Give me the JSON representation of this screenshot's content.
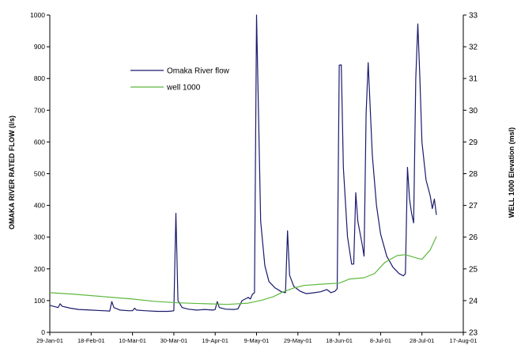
{
  "chart_data": {
    "type": "line",
    "xlabel": "",
    "ylabel": "OMAKA RIVER RATED FLOW (l/s)",
    "y2label": "WELL 1000 Elevation (msl)",
    "ylim": [
      0,
      1000
    ],
    "y2lim": [
      23,
      33
    ],
    "xlim": [
      "2001-01-29",
      "2001-08-17"
    ],
    "grid": false,
    "legend_position": "upper-left inside plot",
    "x_ticks": [
      "29-Jan-01",
      "18-Feb-01",
      "10-Mar-01",
      "30-Mar-01",
      "19-Apr-01",
      "9-May-01",
      "29-May-01",
      "18-Jun-01",
      "8-Jul-01",
      "28-Jul-01",
      "17-Aug-01"
    ],
    "y_ticks": [
      0,
      100,
      200,
      300,
      400,
      500,
      600,
      700,
      800,
      900,
      1000
    ],
    "y2_ticks": [
      23,
      24,
      25,
      26,
      27,
      28,
      29,
      30,
      31,
      32,
      33
    ],
    "series": [
      {
        "name": "Omaka River flow",
        "axis": "left",
        "color": "#1a1a6e",
        "points": [
          [
            "2001-01-29",
            85
          ],
          [
            "2001-02-01",
            80
          ],
          [
            "2001-02-02",
            78
          ],
          [
            "2001-02-03",
            90
          ],
          [
            "2001-02-04",
            82
          ],
          [
            "2001-02-08",
            76
          ],
          [
            "2001-02-12",
            72
          ],
          [
            "2001-02-18",
            70
          ],
          [
            "2001-02-24",
            68
          ],
          [
            "2001-02-27",
            67
          ],
          [
            "2001-02-28",
            97
          ],
          [
            "2001-03-01",
            78
          ],
          [
            "2001-03-04",
            70
          ],
          [
            "2001-03-08",
            68
          ],
          [
            "2001-03-10",
            68
          ],
          [
            "2001-03-11",
            76
          ],
          [
            "2001-03-12",
            70
          ],
          [
            "2001-03-16",
            68
          ],
          [
            "2001-03-22",
            66
          ],
          [
            "2001-03-27",
            66
          ],
          [
            "2001-03-29",
            67
          ],
          [
            "2001-03-30",
            68
          ],
          [
            "2001-03-31",
            375
          ],
          [
            "2001-04-01",
            100
          ],
          [
            "2001-04-03",
            78
          ],
          [
            "2001-04-06",
            73
          ],
          [
            "2001-04-10",
            70
          ],
          [
            "2001-04-14",
            72
          ],
          [
            "2001-04-18",
            70
          ],
          [
            "2001-04-19",
            72
          ],
          [
            "2001-04-20",
            97
          ],
          [
            "2001-04-21",
            78
          ],
          [
            "2001-04-24",
            73
          ],
          [
            "2001-04-28",
            72
          ],
          [
            "2001-04-30",
            74
          ],
          [
            "2001-05-02",
            100
          ],
          [
            "2001-05-05",
            110
          ],
          [
            "2001-05-06",
            105
          ],
          [
            "2001-05-07",
            120
          ],
          [
            "2001-05-08",
            125
          ],
          [
            "2001-05-09",
            1000
          ],
          [
            "2001-05-11",
            350
          ],
          [
            "2001-05-13",
            210
          ],
          [
            "2001-05-15",
            160
          ],
          [
            "2001-05-18",
            140
          ],
          [
            "2001-05-21",
            128
          ],
          [
            "2001-05-23",
            125
          ],
          [
            "2001-05-24",
            320
          ],
          [
            "2001-05-25",
            180
          ],
          [
            "2001-05-27",
            145
          ],
          [
            "2001-05-30",
            130
          ],
          [
            "2001-06-02",
            122
          ],
          [
            "2001-06-06",
            125
          ],
          [
            "2001-06-09",
            128
          ],
          [
            "2001-06-12",
            135
          ],
          [
            "2001-06-14",
            125
          ],
          [
            "2001-06-16",
            130
          ],
          [
            "2001-06-17",
            138
          ],
          [
            "2001-06-18",
            842
          ],
          [
            "2001-06-19",
            843
          ],
          [
            "2001-06-20",
            520
          ],
          [
            "2001-06-22",
            300
          ],
          [
            "2001-06-24",
            215
          ],
          [
            "2001-06-25",
            215
          ],
          [
            "2001-06-26",
            440
          ],
          [
            "2001-06-27",
            350
          ],
          [
            "2001-06-29",
            280
          ],
          [
            "2001-06-30",
            240
          ],
          [
            "2001-07-01",
            690
          ],
          [
            "2001-07-02",
            850
          ],
          [
            "2001-07-04",
            560
          ],
          [
            "2001-07-06",
            400
          ],
          [
            "2001-07-08",
            310
          ],
          [
            "2001-07-11",
            240
          ],
          [
            "2001-07-14",
            205
          ],
          [
            "2001-07-17",
            185
          ],
          [
            "2001-07-19",
            178
          ],
          [
            "2001-07-20",
            185
          ],
          [
            "2001-07-21",
            520
          ],
          [
            "2001-07-22",
            420
          ],
          [
            "2001-07-23",
            375
          ],
          [
            "2001-07-24",
            345
          ],
          [
            "2001-07-25",
            800
          ],
          [
            "2001-07-26",
            972
          ],
          [
            "2001-07-27",
            800
          ],
          [
            "2001-07-28",
            600
          ],
          [
            "2001-07-30",
            480
          ],
          [
            "2001-08-01",
            430
          ],
          [
            "2001-08-02",
            390
          ],
          [
            "2001-08-03",
            420
          ],
          [
            "2001-08-04",
            370
          ]
        ]
      },
      {
        "name": "well 1000",
        "axis": "right",
        "color": "#5fb83e",
        "points": [
          [
            "2001-01-29",
            24.25
          ],
          [
            "2001-02-10",
            24.2
          ],
          [
            "2001-02-25",
            24.12
          ],
          [
            "2001-03-10",
            24.05
          ],
          [
            "2001-03-20",
            23.98
          ],
          [
            "2001-04-01",
            23.93
          ],
          [
            "2001-04-15",
            23.9
          ],
          [
            "2001-04-25",
            23.88
          ],
          [
            "2001-05-05",
            23.92
          ],
          [
            "2001-05-12",
            24.02
          ],
          [
            "2001-05-17",
            24.12
          ],
          [
            "2001-05-22",
            24.28
          ],
          [
            "2001-05-27",
            24.4
          ],
          [
            "2001-06-01",
            24.48
          ],
          [
            "2001-06-10",
            24.52
          ],
          [
            "2001-06-18",
            24.55
          ],
          [
            "2001-06-23",
            24.68
          ],
          [
            "2001-06-30",
            24.72
          ],
          [
            "2001-07-05",
            24.85
          ],
          [
            "2001-07-10",
            25.2
          ],
          [
            "2001-07-16",
            25.42
          ],
          [
            "2001-07-20",
            25.45
          ],
          [
            "2001-07-25",
            25.35
          ],
          [
            "2001-07-28",
            25.3
          ],
          [
            "2001-08-01",
            25.6
          ],
          [
            "2001-08-04",
            26.02
          ]
        ]
      }
    ]
  }
}
